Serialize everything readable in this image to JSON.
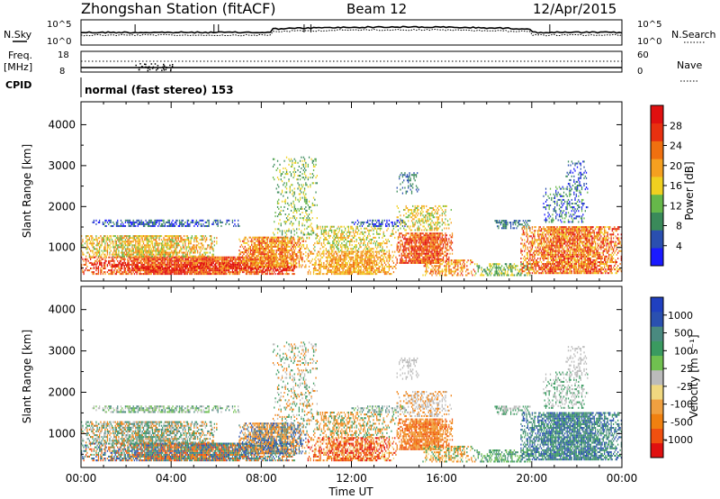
{
  "header": {
    "station": "Zhongshan Station (fitACF)",
    "beam": "Beam 12",
    "date": "12/Apr/2015"
  },
  "params": {
    "nsky_label": "N.Sky",
    "nsky_tick_top": "10^5",
    "nsky_tick_bottom": "10^0",
    "nsearch_label": "N.Search",
    "nsearch_tick_top": "10^5",
    "nsearch_tick_bottom": "10^0",
    "freq_label": "Freq.",
    "freq_unit": "[MHz]",
    "freq_tick_top": "18",
    "freq_tick_bottom": "8",
    "nave_label": "Nave",
    "nave_tick_top": "60",
    "nave_tick_bottom": "0",
    "cpid_label": "CPID",
    "cpid_text": "normal (fast stereo) 153"
  },
  "colors": {
    "power": [
      "#1a1aff",
      "#2a4fb0",
      "#3a8a5a",
      "#66b84a",
      "#f0d020",
      "#f5a020",
      "#f07010",
      "#e83010",
      "#e01010"
    ],
    "velocity": [
      "#e01010",
      "#f05010",
      "#f08010",
      "#f0a040",
      "#f0d880",
      "#bbbbbb",
      "#70c050",
      "#3a9a60",
      "#4a8a80",
      "#2a50b0",
      "#2040c0"
    ]
  },
  "chart_data": [
    {
      "type": "heatmap",
      "panel": "power",
      "ylabel": "Slant Range [km]",
      "xlabel": "Time UT",
      "x_ticks": [
        "00:00",
        "04:00",
        "08:00",
        "12:00",
        "16:00",
        "20:00",
        "00:00"
      ],
      "y_ticks": [
        "1000",
        "2000",
        "3000",
        "4000"
      ],
      "ylim": [
        180,
        4560
      ],
      "xlim_hours": [
        0,
        24
      ],
      "colorbar_label": "Power [dB]",
      "colorbar_ticks": [
        "4",
        "8",
        "12",
        "16",
        "20",
        "24",
        "28"
      ],
      "colorbar_range": [
        0,
        30
      ]
    },
    {
      "type": "heatmap",
      "panel": "velocity",
      "ylabel": "Slant Range [km]",
      "xlabel": "Time UT",
      "x_ticks": [
        "00:00",
        "04:00",
        "08:00",
        "12:00",
        "16:00",
        "20:00",
        "00:00"
      ],
      "y_ticks": [
        "1000",
        "2000",
        "3000",
        "4000"
      ],
      "ylim": [
        180,
        4560
      ],
      "xlim_hours": [
        0,
        24
      ],
      "colorbar_label": "Velocity [m s⁻¹]",
      "colorbar_ticks": [
        "1000",
        "500",
        "100",
        "25",
        "-25",
        "-100",
        "-500",
        "-1000"
      ]
    }
  ]
}
